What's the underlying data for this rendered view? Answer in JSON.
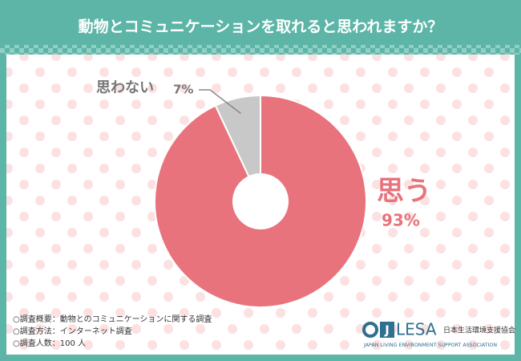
{
  "chart_data": {
    "type": "donut",
    "title": "動物とコミュニケーションを取れると思われますか？",
    "categories": [
      "思う",
      "思わない"
    ],
    "values": [
      93,
      7
    ],
    "value_labels": [
      "93%",
      "7%"
    ],
    "colors": [
      "#e8737c",
      "#c8c8c8"
    ]
  },
  "notes": [
    "○調査概要：動物とのコミュニケーションに関する調査",
    "○調査方法：インターネット調査",
    "○調査人数：100 人"
  ],
  "logo": {
    "mark": "J",
    "name": "LESA",
    "name_ja": "日本生活環境支援協会",
    "name_en": "JAPAN LIVING ENVIRONMENT SUPPORT ASSOCIATION"
  }
}
